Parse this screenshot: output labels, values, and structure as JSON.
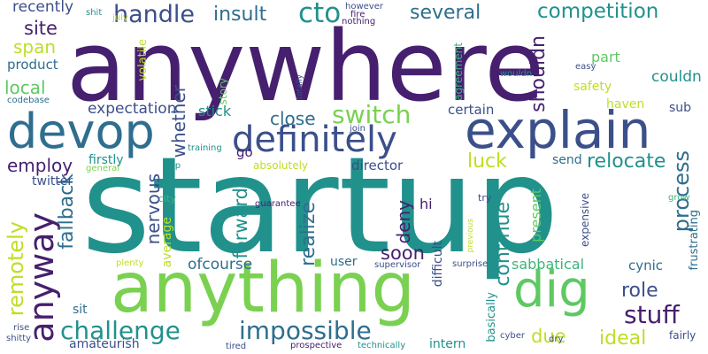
{
  "palette": {
    "background": "#ffffff",
    "deep_purple": "#46206f",
    "indigo": "#3b4f8a",
    "blue": "#2e6e8e",
    "teal": "#21918c",
    "green": "#3bb57a",
    "lime": "#7ad151",
    "yellow": "#bddf26"
  },
  "words": [
    {
      "text": "startup",
      "color": "#21918c"
    },
    {
      "text": "anywhere",
      "color": "#46206f"
    },
    {
      "text": "anything",
      "color": "#7ad151"
    },
    {
      "text": "explain",
      "color": "#3b4f8a"
    },
    {
      "text": "devop",
      "color": "#2e6e8e"
    },
    {
      "text": "dig",
      "color": "#5ec962"
    },
    {
      "text": "definitely",
      "color": "#3b4f8a"
    },
    {
      "text": "impossible",
      "color": "#2e6e8e"
    },
    {
      "text": "challenge",
      "color": "#21918c"
    },
    {
      "text": "handle",
      "color": "#3b4f8a"
    },
    {
      "text": "cto",
      "color": "#21918c"
    },
    {
      "text": "anyway",
      "color": "#46206f"
    },
    {
      "text": "stuff",
      "color": "#46206f"
    },
    {
      "text": "switch",
      "color": "#7ad151"
    },
    {
      "text": "remotely",
      "color": "#bddf26"
    },
    {
      "text": "competition",
      "color": "#21918c"
    },
    {
      "text": "several",
      "color": "#2e6e8e"
    },
    {
      "text": "insult",
      "color": "#2e6e8e"
    },
    {
      "text": "site",
      "color": "#46206f"
    },
    {
      "text": "span",
      "color": "#bddf26"
    },
    {
      "text": "recently",
      "color": "#3b4f8a"
    },
    {
      "text": "product",
      "color": "#2e6e8e"
    },
    {
      "text": "local",
      "color": "#5ec962"
    },
    {
      "text": "expectation",
      "color": "#3b4f8a"
    },
    {
      "text": "employ",
      "color": "#46206f"
    },
    {
      "text": "close",
      "color": "#2e6e8e"
    },
    {
      "text": "luck",
      "color": "#bddf26"
    },
    {
      "text": "relocate",
      "color": "#21918c"
    },
    {
      "text": "continue",
      "color": "#21918c"
    },
    {
      "text": "process",
      "color": "#2e6e8e"
    },
    {
      "text": "realize",
      "color": "#2e6e8e"
    },
    {
      "text": "forward",
      "color": "#21918c"
    },
    {
      "text": "soon",
      "color": "#46206f"
    },
    {
      "text": "deny",
      "color": "#46206f"
    },
    {
      "text": "role",
      "color": "#3b4f8a"
    },
    {
      "text": "ideal",
      "color": "#bddf26"
    },
    {
      "text": "due",
      "color": "#bddf26"
    },
    {
      "text": "fallback",
      "color": "#2e6e8e"
    },
    {
      "text": "nervous",
      "color": "#3b4f8a"
    },
    {
      "text": "whether",
      "color": "#3b4f8a"
    },
    {
      "text": "shouldn",
      "color": "#46206f"
    },
    {
      "text": "couldn",
      "color": "#21918c"
    },
    {
      "text": "safety",
      "color": "#bddf26"
    },
    {
      "text": "certain",
      "color": "#3b4f8a"
    },
    {
      "text": "director",
      "color": "#3b4f8a"
    },
    {
      "text": "send",
      "color": "#2e6e8e"
    },
    {
      "text": "stick",
      "color": "#21918c"
    },
    {
      "text": "go",
      "color": "#46206f"
    },
    {
      "text": "twitter",
      "color": "#3b4f8a"
    },
    {
      "text": "firstly",
      "color": "#21918c"
    },
    {
      "text": "absolutely",
      "color": "#bddf26"
    },
    {
      "text": "part",
      "color": "#5ec962"
    },
    {
      "text": "haven",
      "color": "#bddf26"
    },
    {
      "text": "sub",
      "color": "#3b4f8a"
    },
    {
      "text": "frustrating",
      "color": "#2e6e8e"
    },
    {
      "text": "expensive",
      "color": "#3b4f8a"
    },
    {
      "text": "present",
      "color": "#5ec962"
    },
    {
      "text": "hi",
      "color": "#46206f"
    },
    {
      "text": "sabbatical",
      "color": "#3bb57a"
    },
    {
      "text": "cynic",
      "color": "#2e6e8e"
    },
    {
      "text": "ofcourse",
      "color": "#2e6e8e"
    },
    {
      "text": "average",
      "color": "#bddf26"
    },
    {
      "text": "user",
      "color": "#2e6e8e"
    },
    {
      "text": "difficult",
      "color": "#3b4f8a"
    },
    {
      "text": "volatile",
      "color": "#bddf26"
    },
    {
      "text": "story",
      "color": "#5ec962"
    },
    {
      "text": "sit",
      "color": "#2e6e8e"
    },
    {
      "text": "amateurish",
      "color": "#3b4f8a"
    },
    {
      "text": "intern",
      "color": "#21918c"
    },
    {
      "text": "basically",
      "color": "#21918c"
    },
    {
      "text": "fairly",
      "color": "#3b4f8a"
    },
    {
      "text": "agreement",
      "color": "#3bb57a"
    },
    {
      "text": "wouldn",
      "color": "#21918c"
    },
    {
      "text": "easy",
      "color": "#3b4f8a"
    },
    {
      "text": "shit",
      "color": "#21918c"
    },
    {
      "text": "july",
      "color": "#bddf26"
    },
    {
      "text": "however",
      "color": "#3b4f8a"
    },
    {
      "text": "nothing",
      "color": "#46206f"
    },
    {
      "text": "fire",
      "color": "#46206f"
    },
    {
      "text": "codebase",
      "color": "#2e6e8e"
    },
    {
      "text": "totally",
      "color": "#3b4f8a"
    },
    {
      "text": "join",
      "color": "#3b4f8a"
    },
    {
      "text": "training",
      "color": "#21918c"
    },
    {
      "text": "tip",
      "color": "#21918c"
    },
    {
      "text": "general",
      "color": "#7ad151"
    },
    {
      "text": "city",
      "color": "#3bb57a"
    },
    {
      "text": "guarantee",
      "color": "#46206f"
    },
    {
      "text": "plenty",
      "color": "#bddf26"
    },
    {
      "text": "supervisor",
      "color": "#3b4f8a"
    },
    {
      "text": "surprise",
      "color": "#3b4f8a"
    },
    {
      "text": "grow",
      "color": "#3bb57a"
    },
    {
      "text": "try",
      "color": "#3b4f8a"
    },
    {
      "text": "previous",
      "color": "#bddf26"
    },
    {
      "text": "rise",
      "color": "#3b4f8a"
    },
    {
      "text": "shitty",
      "color": "#3b4f8a"
    },
    {
      "text": "prospective",
      "color": "#46206f"
    },
    {
      "text": "technically",
      "color": "#21918c"
    },
    {
      "text": "tired",
      "color": "#3b4f8a"
    },
    {
      "text": "cyber",
      "color": "#3b4f8a"
    },
    {
      "text": "dry",
      "color": "#3b4f8a"
    }
  ]
}
